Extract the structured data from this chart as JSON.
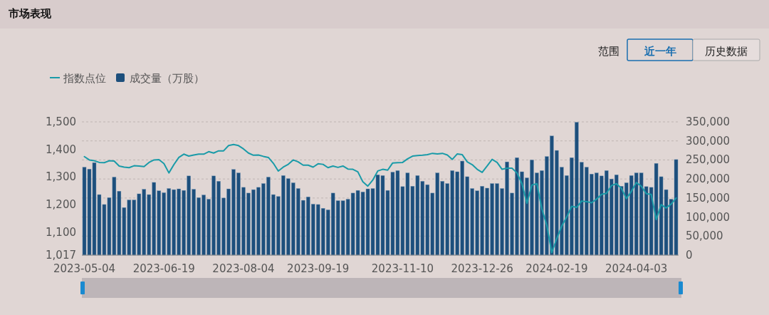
{
  "chart_data": {
    "type": "bar",
    "title": "市场表现",
    "annotations": [
      "范围",
      "近一年",
      "历史数据"
    ],
    "categories": [
      "2023-05-04",
      null,
      null,
      null,
      null,
      null,
      null,
      null,
      null,
      null,
      null,
      null,
      null,
      null,
      null,
      null,
      "2023-06-19",
      null,
      null,
      null,
      null,
      null,
      null,
      null,
      null,
      null,
      null,
      null,
      null,
      null,
      null,
      null,
      "2023-08-04",
      null,
      null,
      null,
      null,
      null,
      null,
      null,
      null,
      null,
      null,
      null,
      null,
      null,
      null,
      "2023-09-19",
      null,
      null,
      null,
      null,
      null,
      null,
      null,
      null,
      null,
      null,
      null,
      null,
      null,
      null,
      null,
      null,
      "2023-11-10",
      null,
      null,
      null,
      null,
      null,
      null,
      null,
      null,
      null,
      null,
      null,
      null,
      null,
      null,
      null,
      "2023-12-26",
      null,
      null,
      null,
      null,
      null,
      null,
      null,
      null,
      null,
      null,
      null,
      null,
      null,
      null,
      "2024-02-19",
      null,
      null,
      null,
      null,
      null,
      null,
      null,
      null,
      null,
      null,
      null,
      null,
      null,
      null,
      null,
      "2024-04-03",
      null,
      null,
      null,
      null,
      null,
      null,
      null,
      null
    ],
    "series": [
      {
        "name": "指数点位",
        "type": "line",
        "color": "#1a9ba8",
        "values": [
          1374,
          1362,
          1359,
          1353,
          1352,
          1359,
          1358,
          1340,
          1336,
          1334,
          1341,
          1340,
          1338,
          1353,
          1362,
          1363,
          1349,
          1315,
          1345,
          1371,
          1383,
          1376,
          1380,
          1383,
          1383,
          1392,
          1387,
          1395,
          1395,
          1414,
          1418,
          1414,
          1402,
          1387,
          1379,
          1380,
          1375,
          1371,
          1350,
          1322,
          1336,
          1346,
          1362,
          1355,
          1343,
          1343,
          1336,
          1348,
          1346,
          1334,
          1340,
          1335,
          1340,
          1329,
          1328,
          1319,
          1283,
          1267,
          1289,
          1322,
          1328,
          1325,
          1351,
          1352,
          1353,
          1366,
          1376,
          1378,
          1379,
          1381,
          1386,
          1384,
          1386,
          1380,
          1364,
          1384,
          1381,
          1355,
          1345,
          1328,
          1317,
          1340,
          1364,
          1353,
          1328,
          1332,
          1332,
          1315,
          1276,
          1205,
          1271,
          1276,
          1185,
          1125,
          1026,
          1077,
          1122,
          1155,
          1194,
          1190,
          1213,
          1211,
          1207,
          1220,
          1237,
          1241,
          1269,
          1276,
          1259,
          1222,
          1248,
          1280,
          1267,
          1240,
          1237,
          1146,
          1200,
          1188,
          1202,
          1224
        ]
      },
      {
        "name": "成交量（万股）",
        "axis": "y2",
        "color": "#1d4f7c",
        "values": [
          231000,
          226000,
          243000,
          159000,
          133000,
          151000,
          205000,
          168000,
          125000,
          145000,
          145000,
          161000,
          173000,
          159000,
          191000,
          169000,
          164000,
          175000,
          172000,
          174000,
          170000,
          208000,
          173000,
          151000,
          158000,
          147000,
          208000,
          194000,
          150000,
          174000,
          225000,
          216000,
          178000,
          163000,
          172000,
          178000,
          188000,
          205000,
          159000,
          154000,
          209000,
          201000,
          190000,
          175000,
          144000,
          153000,
          134000,
          133000,
          123000,
          119000,
          163000,
          143000,
          143000,
          147000,
          163000,
          170000,
          166000,
          174000,
          175000,
          211000,
          209000,
          170000,
          218000,
          222000,
          180000,
          216000,
          181000,
          209000,
          194000,
          185000,
          163000,
          216000,
          194000,
          188000,
          222000,
          219000,
          247000,
          206000,
          175000,
          169000,
          181000,
          176000,
          188000,
          188000,
          175000,
          245000,
          163000,
          256000,
          219000,
          203000,
          250000,
          216000,
          222000,
          259000,
          313000,
          275000,
          231000,
          209000,
          256000,
          349000,
          244000,
          231000,
          213000,
          216000,
          208000,
          222000,
          200000,
          211000,
          181000,
          190000,
          209000,
          216000,
          216000,
          180000,
          178000,
          241000,
          206000,
          172000,
          147000,
          251000
        ]
      }
    ],
    "ylim": [
      1017,
      1500
    ],
    "yticks": [
      {
        "value": 1017,
        "label": "1,017"
      },
      {
        "value": 1100,
        "label": "1,100"
      },
      {
        "value": 1200,
        "label": "1,200"
      },
      {
        "value": 1300,
        "label": "1,300"
      },
      {
        "value": 1400,
        "label": "1,400"
      },
      {
        "value": 1500,
        "label": "1,500"
      }
    ],
    "y2lim": [
      0,
      350000
    ],
    "y2ticks": [
      0,
      {
        "value": 50000,
        "label": "50,000"
      },
      {
        "value": 100000,
        "label": "100,000"
      },
      {
        "value": 150000,
        "label": "150,000"
      },
      {
        "value": 200000,
        "label": "200,000"
      },
      {
        "value": 250000,
        "label": "250,000"
      },
      {
        "value": 300000,
        "label": "300,000"
      },
      {
        "value": 350000,
        "label": "350,000"
      }
    ],
    "grid": "y2",
    "legend": "top left"
  }
}
